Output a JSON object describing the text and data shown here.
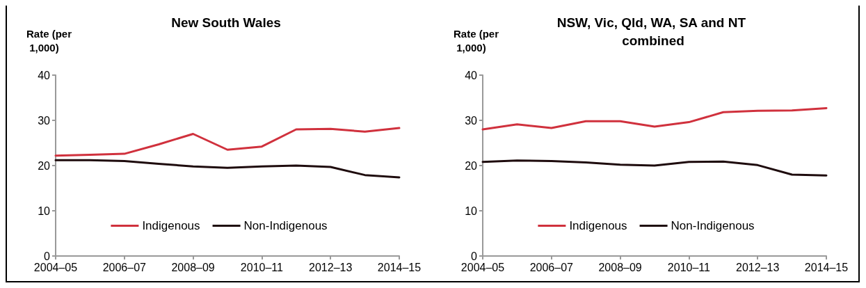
{
  "chart_data": [
    {
      "type": "line",
      "title": "New South Wales",
      "ylabel": "Rate (per 1,000)",
      "categories": [
        "2004–05",
        null,
        "2006–07",
        null,
        "2008–09",
        null,
        "2010–11",
        null,
        "2012–13",
        null,
        "2014–15"
      ],
      "series": [
        {
          "name": "Indigenous",
          "color": "#d0313d",
          "values": [
            22.2,
            22.4,
            22.6,
            24.7,
            27.0,
            23.5,
            24.2,
            28.0,
            28.1,
            27.5,
            28.3
          ]
        },
        {
          "name": "Non-Indigenous",
          "color": "#1e0b0d",
          "values": [
            21.2,
            21.2,
            21.0,
            20.4,
            19.8,
            19.5,
            19.8,
            20.0,
            19.7,
            17.9,
            17.4
          ]
        }
      ],
      "ylim": [
        0,
        40
      ],
      "yticks": [
        0,
        10,
        20,
        30,
        40
      ],
      "grid": false,
      "legend": "bottom",
      "marker": "none",
      "line_style": "solid"
    },
    {
      "type": "line",
      "title": "NSW, Vic, Qld, WA, SA and NT combined",
      "ylabel": "Rate (per 1,000)",
      "categories": [
        "2004–05",
        null,
        "2006–07",
        null,
        "2008–09",
        null,
        "2010–11",
        null,
        "2012–13",
        null,
        "2014–15"
      ],
      "series": [
        {
          "name": "Indigenous",
          "color": "#d0313d",
          "values": [
            28.0,
            29.1,
            28.3,
            29.8,
            29.8,
            28.6,
            29.6,
            31.8,
            32.1,
            32.2,
            32.7
          ]
        },
        {
          "name": "Non-Indigenous",
          "color": "#1e0b0d",
          "values": [
            20.8,
            21.1,
            21.0,
            20.7,
            20.2,
            20.0,
            20.8,
            20.9,
            20.1,
            18.0,
            17.8
          ]
        }
      ],
      "ylim": [
        0,
        40
      ],
      "yticks": [
        0,
        10,
        20,
        30,
        40
      ],
      "grid": false,
      "legend": "bottom",
      "marker": "none",
      "line_style": "solid"
    }
  ]
}
